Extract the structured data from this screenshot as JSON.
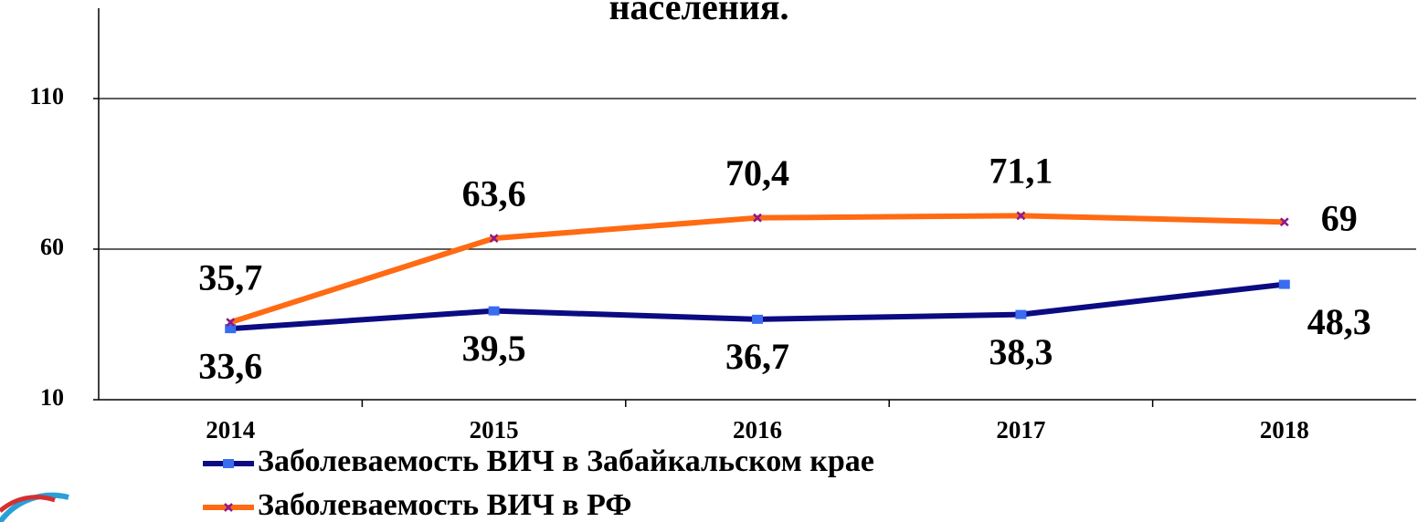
{
  "chart_data": {
    "type": "line",
    "title": "населения.",
    "categories": [
      "2014",
      "2015",
      "2016",
      "2017",
      "2018"
    ],
    "series": [
      {
        "name": "Заболеваемость ВИЧ в Забайкальском крае",
        "color": "#0b0b82",
        "marker_color": "#3a6cf0",
        "values": [
          33.6,
          39.5,
          36.7,
          38.3,
          48.3
        ],
        "value_labels": [
          "33,6",
          "39,5",
          "36,7",
          "38,3",
          "48,3"
        ]
      },
      {
        "name": "Заболеваемость ВИЧ в РФ",
        "color": "#ff6a13",
        "marker_color": "#8b1a8b",
        "values": [
          35.7,
          63.6,
          70.4,
          71.1,
          69
        ],
        "value_labels": [
          "35,7",
          "63,6",
          "70,4",
          "71,1",
          "69"
        ]
      }
    ],
    "ylim": [
      10,
      140
    ],
    "yticks": [
      10,
      60,
      110
    ],
    "grid": true
  }
}
